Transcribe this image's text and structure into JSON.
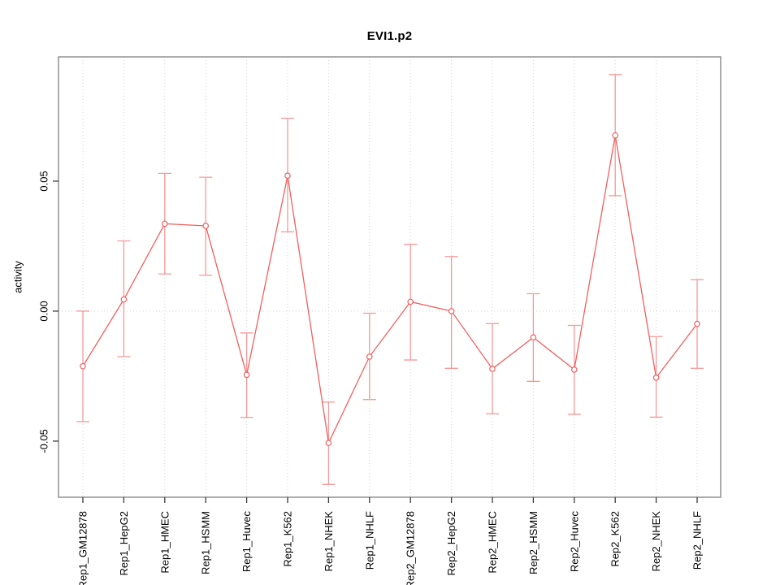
{
  "chart_data": {
    "type": "line",
    "title": "EVI1.p2",
    "ylabel": "activity",
    "xlabel": "",
    "legend": "none",
    "marker": "open-circle",
    "categories": [
      "Rep1_GM12878",
      "Rep1_HepG2",
      "Rep1_HMEC",
      "Rep1_HSMM",
      "Rep1_Huvec",
      "Rep1_K562",
      "Rep1_NHEK",
      "Rep1_NHLF",
      "Rep2_GM12878",
      "Rep2_HepG2",
      "Rep2_HMEC",
      "Rep2_HSMM",
      "Rep2_Huvec",
      "Rep2_K562",
      "Rep2_NHEK",
      "Rep2_NHLF"
    ],
    "series": [
      {
        "name": "activity",
        "values": [
          -0.0212,
          0.0045,
          0.0336,
          0.0328,
          -0.0245,
          0.0521,
          -0.0507,
          -0.0175,
          0.0036,
          0.0,
          -0.0222,
          -0.0101,
          -0.0225,
          0.0676,
          -0.0256,
          -0.0049
        ],
        "upper": [
          0.0,
          0.027,
          0.053,
          0.0515,
          -0.0084,
          0.0742,
          -0.035,
          -0.0008,
          0.0257,
          0.021,
          -0.0048,
          0.0067,
          -0.0055,
          0.091,
          -0.0098,
          0.0121
        ],
        "lower": [
          -0.0425,
          -0.0175,
          0.0143,
          0.0138,
          -0.0409,
          0.0305,
          -0.0667,
          -0.034,
          -0.0188,
          -0.022,
          -0.0395,
          -0.027,
          -0.0397,
          0.0444,
          -0.0408,
          -0.022
        ]
      }
    ],
    "ylim": [
      -0.0716,
      0.0978
    ],
    "yticks": [
      -0.05,
      0,
      0.05
    ],
    "ytick_labels": [
      "-0.05",
      "0.00",
      "0.05"
    ],
    "grid": {
      "vertical_dotted_at_each_category": true,
      "horizontal_dotted_at_zero": true
    },
    "colors": {
      "line": "#f25f5f",
      "error_bar": "#f59898",
      "marker_fill": "#ffffff",
      "grid": "#d4d4d4",
      "box": "#898989",
      "tick": "#3a3a3a",
      "text": "#000000"
    }
  }
}
